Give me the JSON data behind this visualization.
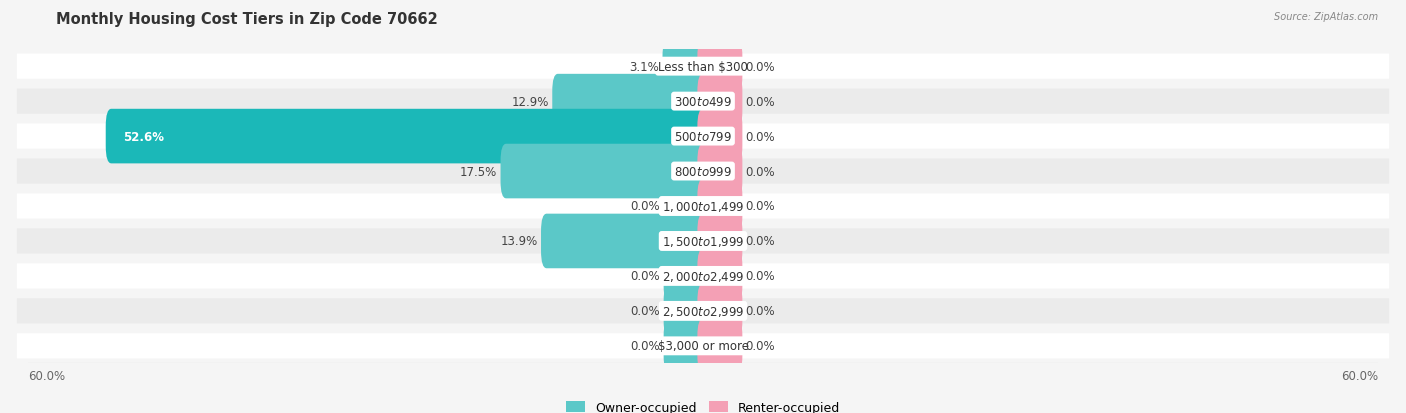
{
  "title": "Monthly Housing Cost Tiers in Zip Code 70662",
  "source": "Source: ZipAtlas.com",
  "categories": [
    "Less than $300",
    "$300 to $499",
    "$500 to $799",
    "$800 to $999",
    "$1,000 to $1,499",
    "$1,500 to $1,999",
    "$2,000 to $2,499",
    "$2,500 to $2,999",
    "$3,000 or more"
  ],
  "owner_values": [
    3.1,
    12.9,
    52.6,
    17.5,
    0.0,
    13.9,
    0.0,
    0.0,
    0.0
  ],
  "renter_values": [
    0.0,
    0.0,
    0.0,
    0.0,
    0.0,
    0.0,
    0.0,
    0.0,
    0.0
  ],
  "owner_color": "#5BC8C8",
  "owner_color_dark": "#1BB8B8",
  "renter_color": "#F4A0B5",
  "renter_color_placeholder": "#F2BFCF",
  "axis_max": 60.0,
  "min_bar_size": 3.0,
  "bg_color": "#f5f5f5",
  "row_bg_light": "#ffffff",
  "row_bg_dark": "#ebebeb",
  "label_fontsize": 8.5,
  "title_fontsize": 10.5,
  "legend_fontsize": 9,
  "axis_label_fontsize": 8.5
}
